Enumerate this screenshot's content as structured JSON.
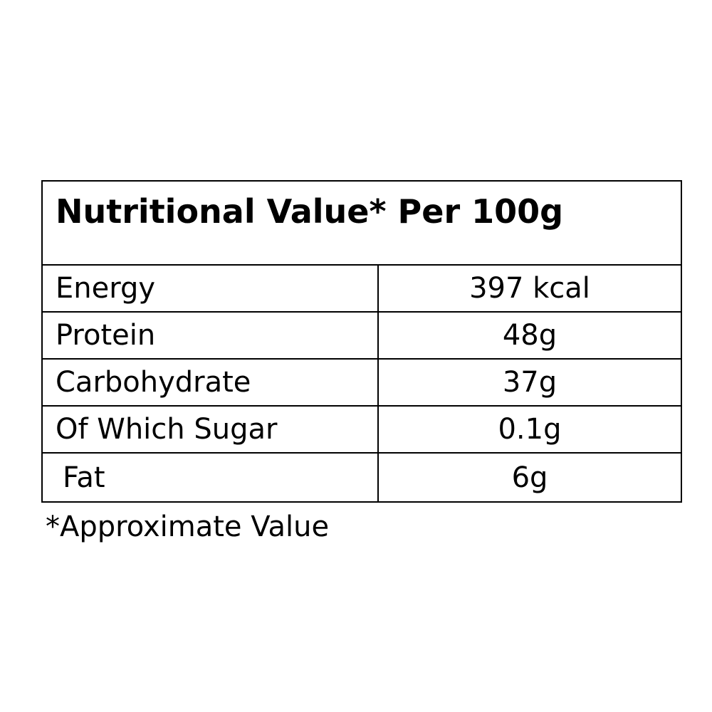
{
  "table": {
    "title": "Nutritional Value* Per 100g",
    "rows": [
      {
        "label": "Energy",
        "value": "397 kcal"
      },
      {
        "label": "Protein",
        "value": "48g"
      },
      {
        "label": "Carbohydrate",
        "value": "37g"
      },
      {
        "label": "Of Which Sugar",
        "value": "0.1g"
      },
      {
        "label": "Fat",
        "value": "6g"
      }
    ]
  },
  "footnote": "*Approximate Value"
}
